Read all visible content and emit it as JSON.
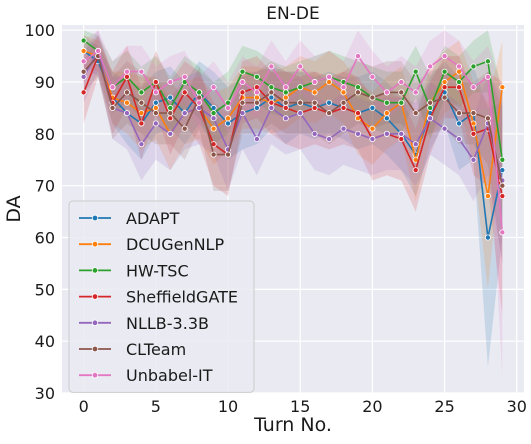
{
  "chart_data": {
    "type": "line",
    "title": "EN-DE",
    "xlabel": "Turn No.",
    "ylabel": "DA",
    "xlim": [
      -1.5,
      30.5
    ],
    "ylim": [
      30,
      101
    ],
    "xticks": [
      0,
      5,
      10,
      15,
      20,
      25,
      30
    ],
    "yticks": [
      30,
      40,
      50,
      60,
      70,
      80,
      90,
      100
    ],
    "grid": true,
    "legend_position": "lower-left",
    "x": [
      0,
      1,
      2,
      3,
      4,
      5,
      6,
      7,
      8,
      9,
      10,
      11,
      12,
      13,
      14,
      15,
      16,
      17,
      18,
      19,
      20,
      21,
      22,
      23,
      24,
      25,
      26,
      27,
      28,
      29
    ],
    "series": [
      {
        "name": "ADAPT",
        "color": "#1f77b4",
        "values": [
          96,
          94,
          87,
          84,
          82,
          86,
          87,
          84,
          88,
          85,
          82,
          84,
          85,
          87,
          85,
          86,
          85,
          86,
          85,
          84,
          85,
          83,
          80,
          76,
          84,
          88,
          82,
          84,
          60,
          73
        ],
        "lower": [
          93,
          91,
          82,
          78,
          75,
          80,
          81,
          78,
          82,
          78,
          75,
          77,
          78,
          81,
          78,
          80,
          79,
          80,
          79,
          77,
          78,
          76,
          73,
          68,
          77,
          82,
          73,
          75,
          35,
          60
        ],
        "upper": [
          99,
          97,
          92,
          90,
          89,
          92,
          93,
          90,
          94,
          92,
          89,
          91,
          92,
          93,
          92,
          92,
          91,
          92,
          91,
          91,
          92,
          90,
          87,
          84,
          91,
          94,
          91,
          93,
          85,
          86
        ]
      },
      {
        "name": "DCUGenNLP",
        "color": "#ff7f0e",
        "values": [
          96,
          95,
          87,
          86,
          84,
          85,
          80,
          84,
          85,
          81,
          83,
          87,
          87,
          86,
          87,
          89,
          88,
          90,
          88,
          83,
          81,
          84,
          86,
          75,
          86,
          90,
          92,
          82,
          68,
          89
        ],
        "lower": [
          93,
          92,
          82,
          80,
          77,
          79,
          73,
          78,
          79,
          74,
          77,
          81,
          81,
          80,
          81,
          83,
          82,
          84,
          82,
          76,
          74,
          77,
          79,
          67,
          79,
          84,
          86,
          74,
          50,
          78
        ],
        "upper": [
          99,
          98,
          92,
          92,
          91,
          91,
          87,
          90,
          91,
          88,
          89,
          93,
          93,
          92,
          93,
          95,
          94,
          96,
          94,
          90,
          88,
          91,
          93,
          83,
          93,
          96,
          98,
          90,
          86,
          98
        ]
      },
      {
        "name": "HW-TSC",
        "color": "#2ca02c",
        "values": [
          98,
          96,
          89,
          91,
          88,
          90,
          85,
          90,
          88,
          84,
          86,
          92,
          91,
          89,
          88,
          89,
          90,
          91,
          90,
          89,
          87,
          86,
          86,
          92,
          85,
          92,
          90,
          93,
          94,
          75
        ],
        "lower": [
          96,
          93,
          84,
          86,
          83,
          85,
          79,
          85,
          83,
          78,
          80,
          87,
          86,
          84,
          83,
          84,
          85,
          86,
          85,
          84,
          81,
          80,
          80,
          87,
          79,
          87,
          85,
          88,
          88,
          62
        ],
        "upper": [
          100,
          99,
          94,
          96,
          93,
          95,
          91,
          95,
          93,
          90,
          92,
          97,
          96,
          94,
          93,
          94,
          95,
          96,
          95,
          94,
          93,
          92,
          92,
          97,
          91,
          97,
          95,
          98,
          100,
          88
        ]
      },
      {
        "name": "SheffieldGATE",
        "color": "#d62728",
        "values": [
          88,
          95,
          86,
          91,
          82,
          90,
          83,
          88,
          85,
          78,
          76,
          88,
          89,
          86,
          85,
          84,
          85,
          84,
          85,
          84,
          79,
          80,
          79,
          73,
          83,
          89,
          89,
          80,
          81,
          68
        ],
        "lower": [
          82,
          91,
          80,
          85,
          75,
          84,
          76,
          82,
          78,
          70,
          68,
          82,
          83,
          80,
          78,
          77,
          78,
          77,
          78,
          77,
          71,
          72,
          71,
          65,
          76,
          83,
          83,
          72,
          70,
          45
        ],
        "upper": [
          94,
          99,
          92,
          97,
          89,
          96,
          90,
          94,
          92,
          86,
          84,
          94,
          95,
          92,
          92,
          91,
          92,
          91,
          92,
          91,
          87,
          88,
          87,
          81,
          90,
          95,
          95,
          88,
          92,
          90
        ]
      },
      {
        "name": "NLLB-3.3B",
        "color": "#9467bd",
        "values": [
          91,
          96,
          85,
          84,
          78,
          82,
          80,
          84,
          85,
          83,
          77,
          84,
          79,
          85,
          83,
          84,
          80,
          79,
          81,
          80,
          79,
          80,
          80,
          78,
          83,
          81,
          79,
          75,
          82,
          71
        ],
        "lower": [
          86,
          92,
          79,
          77,
          71,
          75,
          73,
          77,
          78,
          76,
          69,
          77,
          72,
          78,
          76,
          77,
          73,
          72,
          74,
          73,
          72,
          73,
          73,
          70,
          76,
          74,
          72,
          67,
          72,
          55
        ],
        "upper": [
          96,
          100,
          91,
          91,
          85,
          89,
          87,
          91,
          92,
          90,
          85,
          91,
          86,
          92,
          90,
          91,
          87,
          86,
          88,
          87,
          86,
          87,
          87,
          86,
          90,
          88,
          86,
          83,
          92,
          87
        ]
      },
      {
        "name": "CLTeam",
        "color": "#8c564b",
        "values": [
          92,
          95,
          85,
          88,
          86,
          84,
          84,
          81,
          87,
          76,
          76,
          86,
          86,
          88,
          86,
          86,
          86,
          84,
          86,
          88,
          87,
          88,
          88,
          84,
          86,
          87,
          84,
          84,
          83,
          70
        ],
        "lower": [
          88,
          91,
          79,
          82,
          80,
          78,
          78,
          75,
          81,
          69,
          69,
          80,
          80,
          82,
          80,
          80,
          80,
          78,
          80,
          82,
          81,
          82,
          82,
          78,
          80,
          81,
          78,
          78,
          74,
          55
        ],
        "upper": [
          96,
          99,
          91,
          94,
          92,
          90,
          90,
          87,
          93,
          83,
          83,
          92,
          92,
          94,
          92,
          92,
          92,
          90,
          92,
          94,
          93,
          94,
          94,
          90,
          92,
          93,
          90,
          90,
          92,
          85
        ]
      },
      {
        "name": "Unbabel-IT",
        "color": "#e377c2",
        "values": [
          94,
          96,
          89,
          92,
          92,
          88,
          90,
          91,
          86,
          89,
          85,
          90,
          88,
          93,
          89,
          93,
          90,
          91,
          89,
          95,
          91,
          88,
          90,
          88,
          93,
          95,
          93,
          89,
          91,
          61
        ],
        "lower": [
          90,
          92,
          84,
          87,
          87,
          83,
          85,
          86,
          81,
          84,
          80,
          85,
          83,
          88,
          84,
          88,
          85,
          86,
          84,
          90,
          86,
          83,
          85,
          83,
          88,
          90,
          88,
          84,
          85,
          33
        ],
        "upper": [
          98,
          100,
          94,
          97,
          97,
          93,
          95,
          96,
          91,
          94,
          90,
          95,
          93,
          98,
          94,
          98,
          95,
          96,
          94,
          100,
          96,
          93,
          95,
          93,
          98,
          100,
          98,
          94,
          97,
          89
        ]
      }
    ]
  }
}
